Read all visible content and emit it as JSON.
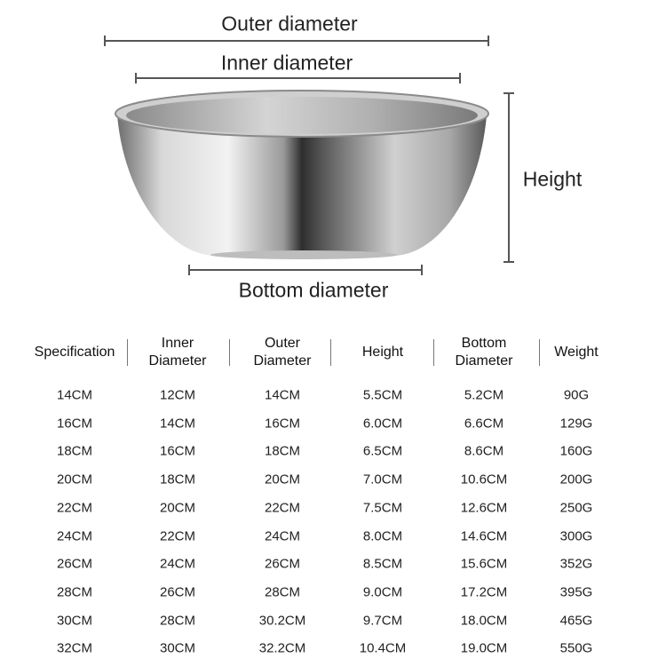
{
  "diagram": {
    "outer_label": "Outer diameter",
    "inner_label": "Inner diameter",
    "height_label": "Height",
    "bottom_label": "Bottom diameter"
  },
  "table": {
    "headers": [
      "Specification",
      "Inner\nDiameter",
      "Outer\nDiameter",
      "Height",
      "Bottom\nDiameter",
      "Weight"
    ],
    "rows": [
      [
        "14CM",
        "12CM",
        "14CM",
        "5.5CM",
        "5.2CM",
        "90G"
      ],
      [
        "16CM",
        "14CM",
        "16CM",
        "6.0CM",
        "6.6CM",
        "129G"
      ],
      [
        "18CM",
        "16CM",
        "18CM",
        "6.5CM",
        "8.6CM",
        "160G"
      ],
      [
        "20CM",
        "18CM",
        "20CM",
        "7.0CM",
        "10.6CM",
        "200G"
      ],
      [
        "22CM",
        "20CM",
        "22CM",
        "7.5CM",
        "12.6CM",
        "250G"
      ],
      [
        "24CM",
        "22CM",
        "24CM",
        "8.0CM",
        "14.6CM",
        "300G"
      ],
      [
        "26CM",
        "24CM",
        "26CM",
        "8.5CM",
        "15.6CM",
        "352G"
      ],
      [
        "28CM",
        "26CM",
        "28CM",
        "9.0CM",
        "17.2CM",
        "395G"
      ],
      [
        "30CM",
        "28CM",
        "30.2CM",
        "9.7CM",
        "18.0CM",
        "465G"
      ],
      [
        "32CM",
        "30CM",
        "32.2CM",
        "10.4CM",
        "19.0CM",
        "550G"
      ]
    ]
  },
  "colors": {
    "line": "#555555",
    "steel_dark": "#3a3a3a",
    "steel_light": "#e8e8e8"
  }
}
